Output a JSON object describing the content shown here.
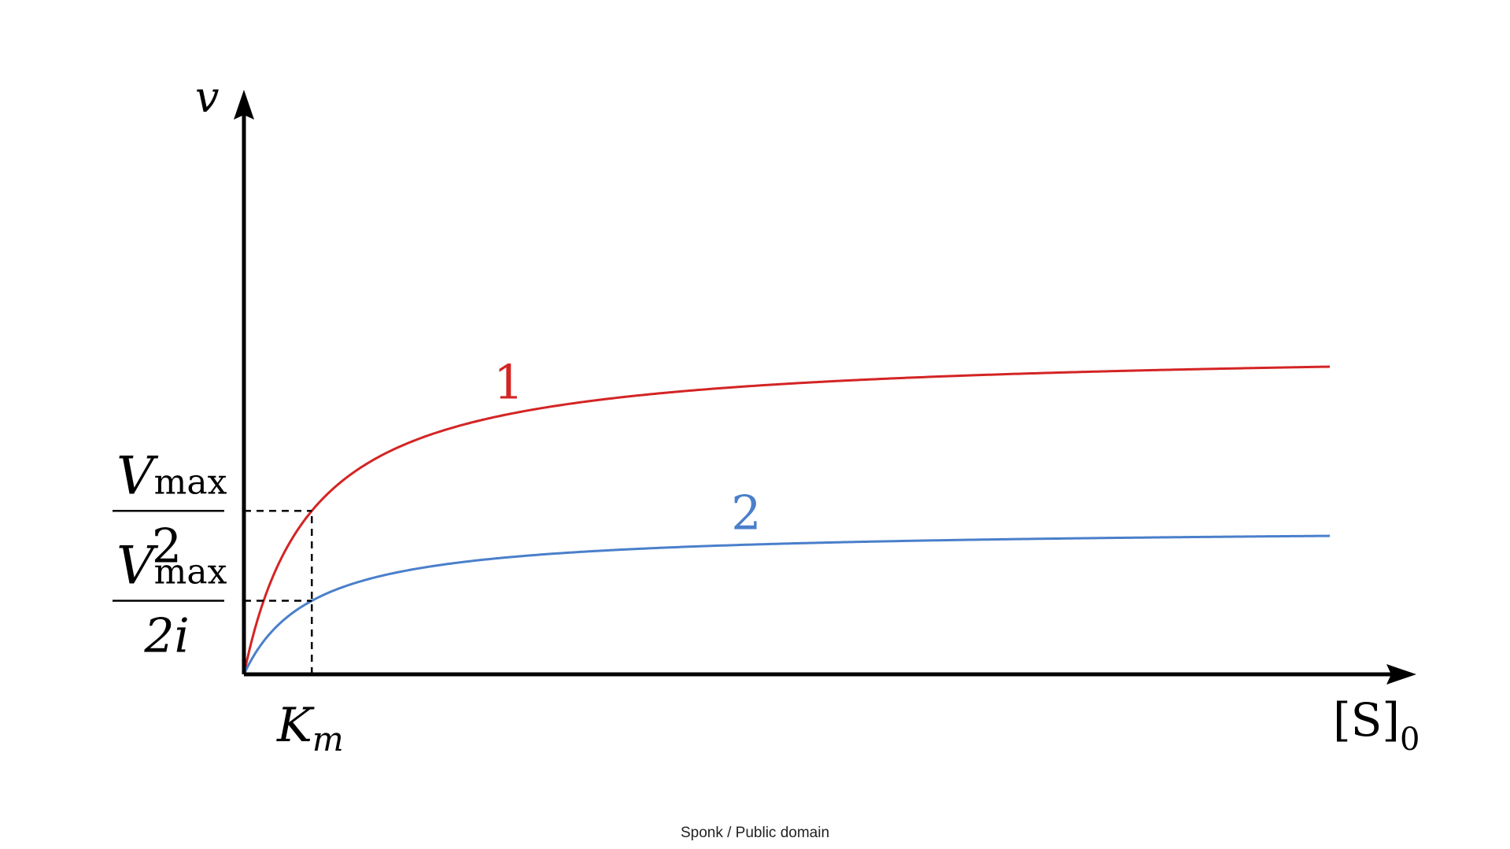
{
  "chart_data": {
    "type": "line",
    "title": "",
    "ylabel": "v",
    "xlabel": {
      "main": "[S]",
      "sub": "0"
    },
    "km_label": {
      "main": "K",
      "sub": "m"
    },
    "ytick_labels": [
      {
        "num": "V",
        "num_sub": "max",
        "den": "2"
      },
      {
        "num": "V",
        "num_sub": "max",
        "den": "2i"
      }
    ],
    "model": "michaelis-menten",
    "km": 1,
    "xlim": [
      0,
      16
    ],
    "ylim": [
      0,
      1.75
    ],
    "series": [
      {
        "name": "1",
        "vmax": 1.0,
        "color": "#d42424"
      },
      {
        "name": "2",
        "vmax": 0.45,
        "color": "#4a7fcb"
      }
    ],
    "credit": "Sponk / Public domain"
  }
}
